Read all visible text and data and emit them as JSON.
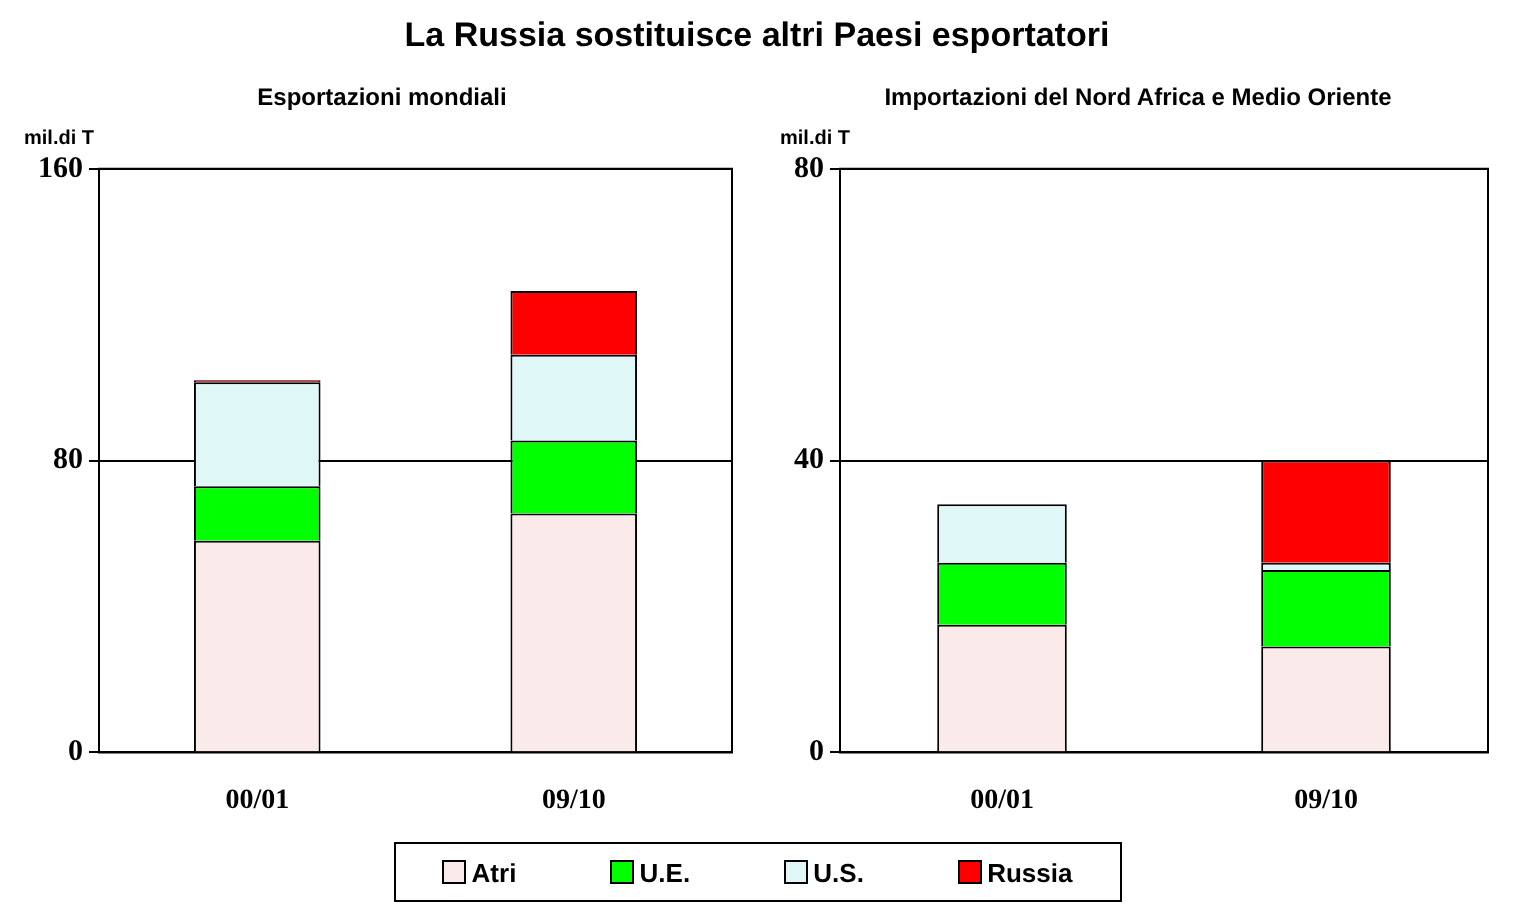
{
  "chart_data": [
    {
      "type": "bar",
      "title": "La Russia sostituisce altri Paesi esportatori",
      "subtitle": "Esportazioni mondiali",
      "ylabel": "mil.di T",
      "categories": [
        "00/01",
        "09/10"
      ],
      "stacked": true,
      "ylim": [
        0,
        160
      ],
      "yticks": [
        0,
        80,
        160
      ],
      "grid": "y",
      "legend": "bottom",
      "series": [
        {
          "name": "Atri",
          "color": "#fbeaea",
          "values": [
            58,
            65.5
          ]
        },
        {
          "name": "U.E.",
          "color": "#00ff00",
          "values": [
            15,
            20
          ]
        },
        {
          "name": "U.S.",
          "color": "#dff7f7",
          "values": [
            28.5,
            23.5
          ]
        },
        {
          "name": "Russia",
          "color": "#ff0000",
          "values": [
            0.5,
            17.5
          ]
        }
      ]
    },
    {
      "type": "bar",
      "subtitle": "Importazioni del Nord Africa e Medio Oriente",
      "ylabel": "mil.di T",
      "categories": [
        "00/01",
        "09/10"
      ],
      "stacked": true,
      "ylim": [
        0,
        80
      ],
      "yticks": [
        0,
        40,
        80
      ],
      "grid": "y",
      "series": [
        {
          "color": "#fbeaea",
          "values": [
            17.5,
            14.5
          ]
        },
        {
          "color": "#00ff00",
          "values": [
            8.5,
            10.5
          ]
        },
        {
          "color": "#dff7f7",
          "values": [
            8,
            1
          ]
        },
        {
          "color": "#ff0000",
          "values": [
            null,
            14
          ]
        }
      ]
    }
  ]
}
